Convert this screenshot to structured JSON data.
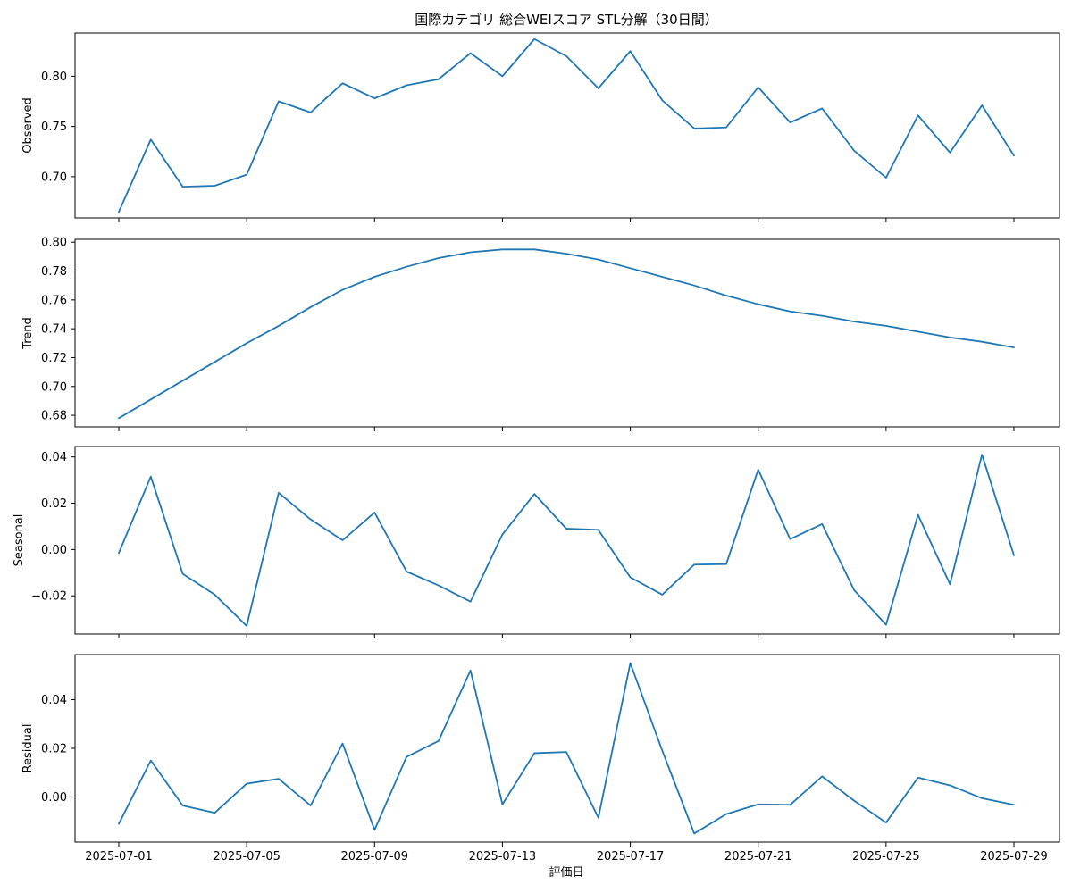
{
  "chart_data": {
    "type": "line",
    "title": "国際カテゴリ 総合WEIスコア STL分解（30日間）",
    "xlabel": "評価日",
    "x": [
      "2025-07-01",
      "2025-07-02",
      "2025-07-03",
      "2025-07-04",
      "2025-07-05",
      "2025-07-06",
      "2025-07-07",
      "2025-07-08",
      "2025-07-09",
      "2025-07-10",
      "2025-07-11",
      "2025-07-12",
      "2025-07-13",
      "2025-07-14",
      "2025-07-15",
      "2025-07-16",
      "2025-07-17",
      "2025-07-18",
      "2025-07-19",
      "2025-07-20",
      "2025-07-21",
      "2025-07-22",
      "2025-07-23",
      "2025-07-24",
      "2025-07-25",
      "2025-07-26",
      "2025-07-27",
      "2025-07-28",
      "2025-07-29"
    ],
    "x_ticks": [
      "2025-07-01",
      "2025-07-05",
      "2025-07-09",
      "2025-07-13",
      "2025-07-17",
      "2025-07-21",
      "2025-07-25",
      "2025-07-29"
    ],
    "line_color": "#1f77b4",
    "grid": false,
    "panels": [
      {
        "ylabel": "Observed",
        "ylim": [
          0.659,
          0.843
        ],
        "yticks": [
          0.7,
          0.75,
          0.8
        ],
        "ytick_labels": [
          "0.70",
          "0.75",
          "0.80"
        ],
        "values": [
          0.665,
          0.737,
          0.69,
          0.691,
          0.702,
          0.775,
          0.764,
          0.793,
          0.778,
          0.791,
          0.797,
          0.823,
          0.8,
          0.837,
          0.82,
          0.788,
          0.825,
          0.776,
          0.748,
          0.749,
          0.789,
          0.754,
          0.768,
          0.726,
          0.699,
          0.761,
          0.724,
          0.771,
          0.721
        ]
      },
      {
        "ylabel": "Trend",
        "ylim": [
          0.672,
          0.802
        ],
        "yticks": [
          0.68,
          0.7,
          0.72,
          0.74,
          0.76,
          0.78,
          0.8
        ],
        "ytick_labels": [
          "0.68",
          "0.70",
          "0.72",
          "0.74",
          "0.76",
          "0.78",
          "0.80"
        ],
        "values": [
          0.678,
          0.691,
          0.704,
          0.717,
          0.73,
          0.742,
          0.755,
          0.767,
          0.776,
          0.783,
          0.789,
          0.793,
          0.795,
          0.795,
          0.792,
          0.788,
          0.782,
          0.776,
          0.77,
          0.763,
          0.757,
          0.752,
          0.749,
          0.745,
          0.742,
          0.738,
          0.734,
          0.731,
          0.727
        ]
      },
      {
        "ylabel": "Seasonal",
        "ylim": [
          -0.0365,
          0.0445
        ],
        "yticks": [
          -0.02,
          0.0,
          0.02,
          0.04
        ],
        "ytick_labels": [
          "−0.02",
          "0.00",
          "0.02",
          "0.04"
        ],
        "values": [
          -0.0015,
          0.0315,
          -0.0105,
          -0.0195,
          -0.033,
          0.0245,
          0.013,
          0.004,
          0.016,
          -0.0095,
          -0.0155,
          -0.0225,
          0.0065,
          0.024,
          0.009,
          0.0085,
          -0.012,
          -0.0195,
          -0.0065,
          -0.0063,
          0.0345,
          0.0045,
          0.011,
          -0.0175,
          -0.0325,
          0.015,
          -0.015,
          0.041,
          -0.0025
        ]
      },
      {
        "ylabel": "Residual",
        "ylim": [
          -0.0185,
          0.0585
        ],
        "yticks": [
          0.0,
          0.02,
          0.04
        ],
        "ytick_labels": [
          "0.00",
          "0.02",
          "0.04"
        ],
        "values": [
          -0.011,
          0.015,
          -0.0035,
          -0.0065,
          0.0055,
          0.0075,
          -0.0035,
          0.022,
          -0.0135,
          0.0165,
          0.023,
          0.052,
          -0.003,
          0.018,
          0.0185,
          -0.0085,
          0.055,
          0.019,
          -0.015,
          -0.007,
          -0.003,
          -0.0032,
          0.0085,
          -0.0015,
          -0.0105,
          0.008,
          0.0048,
          -0.0005,
          -0.0032
        ]
      }
    ]
  }
}
